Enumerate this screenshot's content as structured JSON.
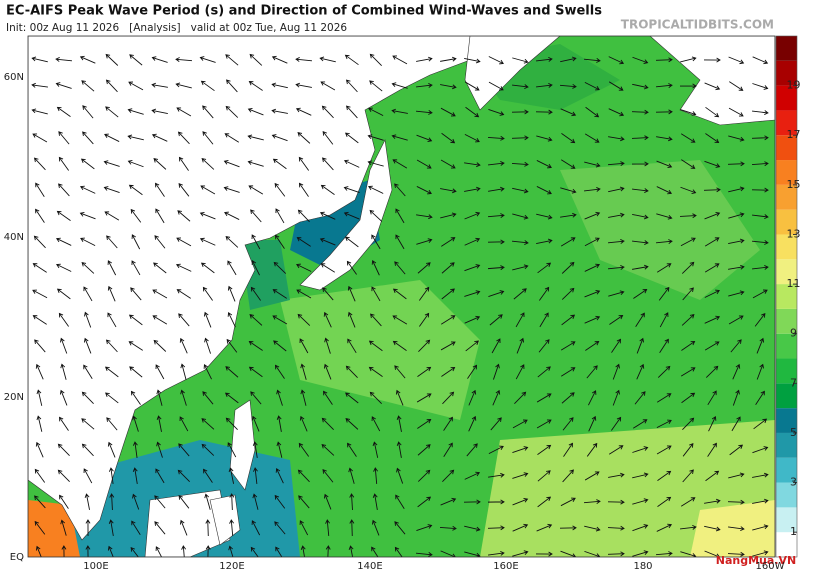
{
  "header": {
    "title": "EC-AIFS Peak Wave Period (s) and Direction of Combined Wind-Waves and Swells",
    "subtitle": "Init: 00z Aug 11 2026   [Analysis]   valid at 00z Tue, Aug 11 2026",
    "site": "TROPICALTIDBITS.COM"
  },
  "map": {
    "lat_labels": [
      "60N",
      "40N",
      "20N",
      "EQ"
    ],
    "lon_labels": [
      "100E",
      "120E",
      "140E",
      "160E",
      "180",
      "160W"
    ]
  },
  "colorbar": {
    "ticks": [
      1,
      3,
      5,
      7,
      9,
      11,
      13,
      15,
      17,
      19
    ],
    "range": [
      0,
      21
    ],
    "colors": [
      "#ffffff",
      "#c8f0f2",
      "#80d8e0",
      "#40b8c8",
      "#2098a8",
      "#087890",
      "#00a040",
      "#20b840",
      "#48c848",
      "#80d858",
      "#b8e860",
      "#f0f080",
      "#f8e060",
      "#f8c040",
      "#f8a030",
      "#f88020",
      "#f05010",
      "#e82010",
      "#d00000",
      "#a80000",
      "#780000"
    ]
  },
  "watermark": "NangMua.VN"
}
